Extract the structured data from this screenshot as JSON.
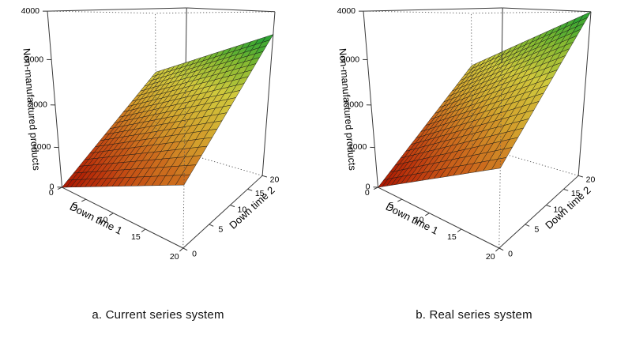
{
  "captions": {
    "a": "a. Current series system",
    "b": "b. Real series system"
  },
  "chart_data": [
    {
      "type": "surface3d",
      "panel": "a",
      "title": "a. Current series system",
      "xlabel": "Down time 1",
      "ylabel": "Down time 2",
      "zlabel": "Non-manufactured products",
      "x_range": [
        0,
        20
      ],
      "y_range": [
        0,
        20
      ],
      "z_range": [
        0,
        4000
      ],
      "x_ticks": [
        0,
        5,
        10,
        15,
        20
      ],
      "y_ticks": [
        0,
        5,
        10,
        15,
        20
      ],
      "z_ticks": [
        0,
        1000,
        2000,
        3000,
        4000
      ],
      "grid_divisions": 20,
      "surface": "plane",
      "z_formula": "z = 60*x + 115*y (estimated from plot)",
      "coef_x": 60,
      "coef_y": 115,
      "surface_corners": {
        "z_at_0_0": 0,
        "z_at_20_0": 1200,
        "z_at_0_20": 2300,
        "z_at_20_20": 3500
      },
      "z_surface_max": 3500,
      "palette": [
        "#a81200",
        "#bf3a0e",
        "#cc6c1d",
        "#d4a52e",
        "#cfc83c",
        "#7fb931",
        "#1a9e33"
      ],
      "hidden_edge_style": "dotted",
      "view": {
        "azimuth": -52,
        "elevation": 14,
        "distance": 2.2,
        "zscale": 1.15
      }
    },
    {
      "type": "surface3d",
      "panel": "b",
      "title": "b. Real series system",
      "xlabel": "Down time 1",
      "ylabel": "Down time 2",
      "zlabel": "Non-manufactured products",
      "x_range": [
        0,
        20
      ],
      "y_range": [
        0,
        20
      ],
      "z_range": [
        0,
        4000
      ],
      "x_ticks": [
        0,
        5,
        10,
        15,
        20
      ],
      "y_ticks": [
        0,
        5,
        10,
        15,
        20
      ],
      "z_ticks": [
        0,
        1000,
        2000,
        3000,
        4000
      ],
      "grid_divisions": 20,
      "surface": "plane",
      "z_formula": "z = 75*x + 125*y (estimated from plot)",
      "coef_x": 75,
      "coef_y": 125,
      "surface_corners": {
        "z_at_0_0": 0,
        "z_at_20_0": 1500,
        "z_at_0_20": 2500,
        "z_at_20_20": 4000
      },
      "z_surface_max": 4000,
      "palette": [
        "#a81200",
        "#bf3a0e",
        "#cc6c1d",
        "#d4a52e",
        "#cfc83c",
        "#7fb931",
        "#1a9e33"
      ],
      "hidden_edge_style": "dotted",
      "view": {
        "azimuth": -52,
        "elevation": 14,
        "distance": 2.2,
        "zscale": 1.15
      }
    }
  ]
}
